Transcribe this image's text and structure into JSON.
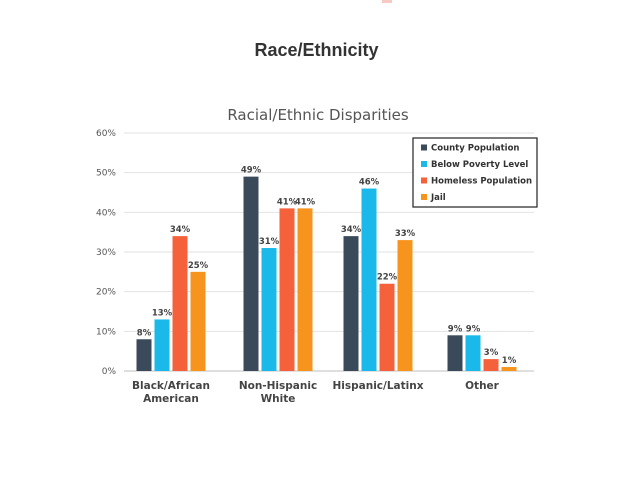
{
  "page": {
    "title": "Race/Ethnicity"
  },
  "chart_data": {
    "type": "bar",
    "title": "Racial/Ethnic Disparities",
    "xlabel": "",
    "ylabel": "",
    "ylim": [
      0,
      60
    ],
    "yticks": [
      "0%",
      "10%",
      "20%",
      "30%",
      "40%",
      "50%",
      "60%"
    ],
    "grid": true,
    "legend_position": "top-right",
    "categories": [
      [
        "Black/African",
        "American"
      ],
      [
        "Non-Hispanic",
        "White"
      ],
      [
        "Hispanic/Latinx"
      ],
      [
        "Other"
      ]
    ],
    "series": [
      {
        "name": "County Population",
        "color": "#3b4a5a",
        "values": [
          8,
          49,
          34,
          9
        ],
        "labels": [
          "8%",
          "49%",
          "34%",
          "9%"
        ]
      },
      {
        "name": "Below Poverty Level",
        "color": "#1ab9ea",
        "values": [
          13,
          31,
          46,
          9
        ],
        "labels": [
          "13%",
          "31%",
          "46%",
          "9%"
        ]
      },
      {
        "name": "Homeless Population",
        "color": "#f4613a",
        "values": [
          34,
          41,
          22,
          3
        ],
        "labels": [
          "34%",
          "41%",
          "22%",
          "3%"
        ]
      },
      {
        "name": "Jail",
        "color": "#f7941d",
        "values": [
          25,
          41,
          33,
          1
        ],
        "labels": [
          "25%",
          "41%",
          "33%",
          "1%"
        ]
      }
    ]
  }
}
